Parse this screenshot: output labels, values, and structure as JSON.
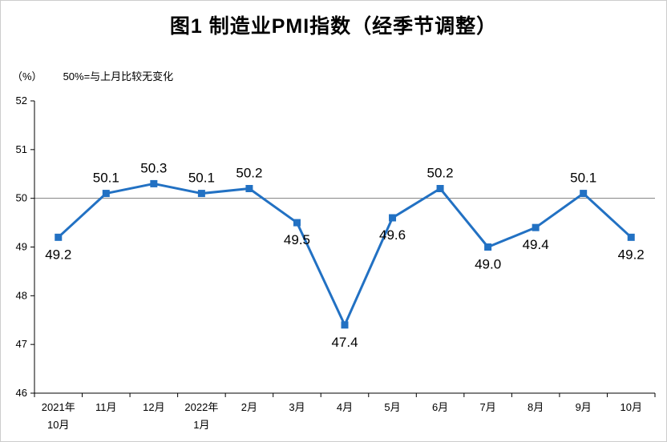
{
  "title": "图1 制造业PMI指数（经季节调整）",
  "unit_label": "（%）",
  "note": "50%=与上月比较无变化",
  "chart_data": {
    "type": "line",
    "title": "图1 制造业PMI指数（经季节调整）",
    "categories": [
      "2021年\n10月",
      "11月",
      "12月",
      "2022年\n1月",
      "2月",
      "3月",
      "4月",
      "5月",
      "6月",
      "7月",
      "8月",
      "9月",
      "10月"
    ],
    "values": [
      49.2,
      50.1,
      50.3,
      50.1,
      50.2,
      49.5,
      47.4,
      49.6,
      50.2,
      49.0,
      49.4,
      50.1,
      49.2
    ],
    "ylim": [
      46,
      52
    ],
    "ytick_step": 1,
    "reference_line": 50,
    "ylabel": "（%）",
    "note": "50%=与上月比较无变化",
    "line_color": "#2271c3",
    "marker": "square",
    "grid": false,
    "legend": "none",
    "axis_color": "#000000",
    "reference_line_color": "#7f7f7f"
  }
}
